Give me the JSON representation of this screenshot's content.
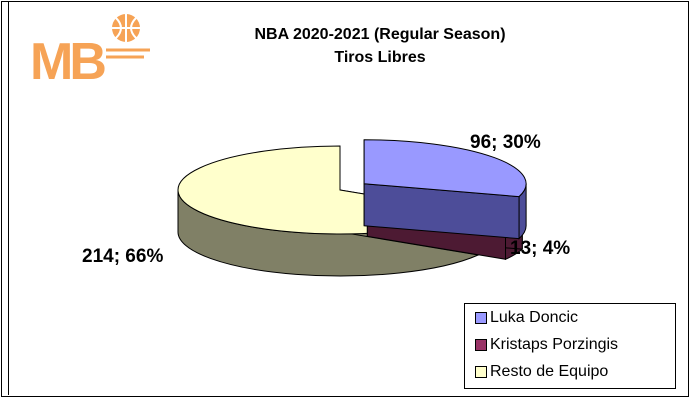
{
  "logo": {
    "text_m": "M",
    "text_b": "B"
  },
  "chart_data": {
    "type": "pie",
    "title": "NBA 2020-2021 (Regular Season)",
    "subtitle": "Tiros Libres",
    "slices": [
      {
        "name": "Luka Doncic",
        "value": 96,
        "percent": 30,
        "label": "96; 30%",
        "color": "#9999ff",
        "side_color": "#4d4d99"
      },
      {
        "name": "Kristaps Porzingis",
        "value": 13,
        "percent": 4,
        "label": "13; 4%",
        "color": "#993366",
        "side_color": "#4d1a33"
      },
      {
        "name": "Resto de Equipo",
        "value": 214,
        "percent": 66,
        "label": "214; 66%",
        "color": "#ffffcc",
        "side_color": "#808066"
      }
    ],
    "legend_position": "bottom-right"
  }
}
